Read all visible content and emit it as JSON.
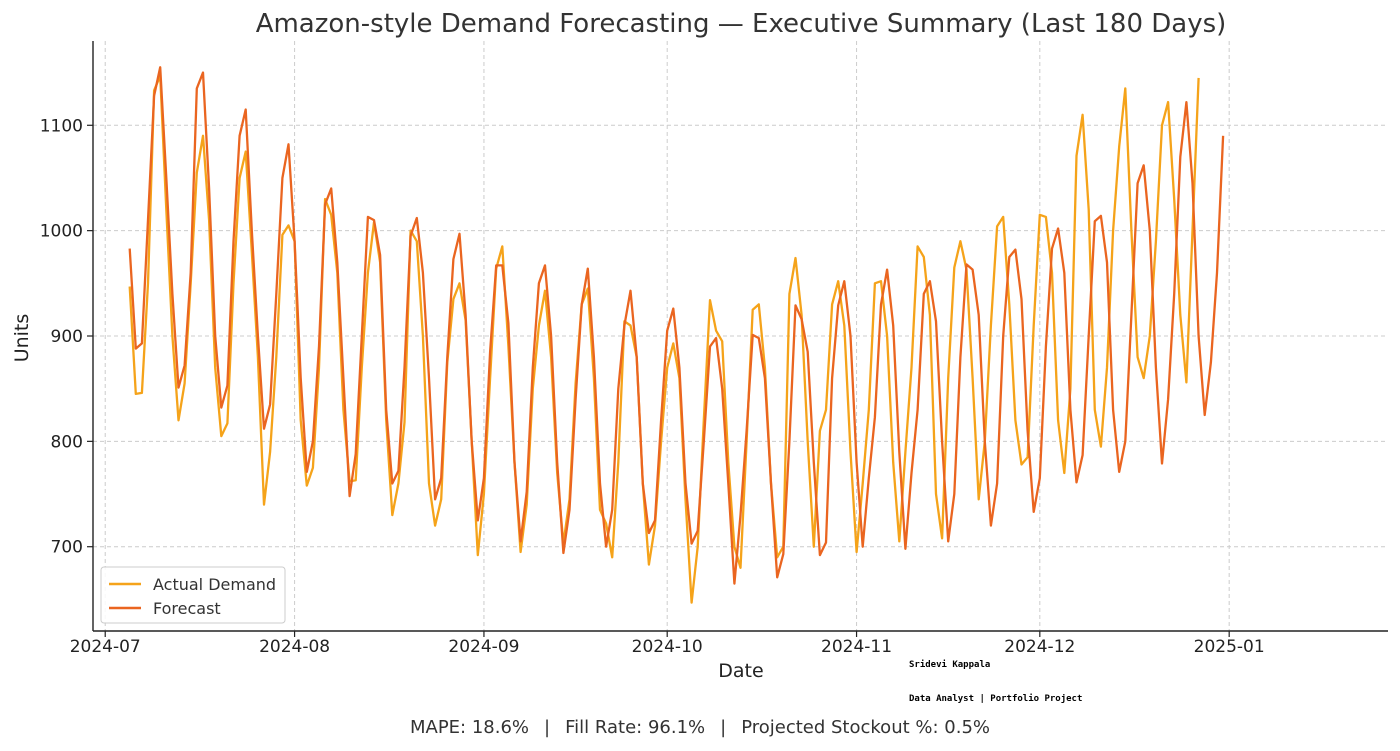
{
  "chart_data": {
    "type": "line",
    "title": "Amazon-style Demand Forecasting — Executive Summary (Last 180 Days)",
    "xlabel": "Date",
    "ylabel": "Units",
    "x_ticks": [
      "2024-07",
      "2024-08",
      "2024-09",
      "2024-10",
      "2024-11",
      "2024-12",
      "2025-01"
    ],
    "y_ticks": [
      700,
      800,
      900,
      1000,
      1100
    ],
    "xlim": [
      "2024-06-29",
      "2025-01-27"
    ],
    "ylim": [
      620,
      1180
    ],
    "grid": true,
    "legend_position": "lower-left",
    "x_start": "2024-07-05",
    "x_end": "2024-12-31",
    "series": [
      {
        "name": "Actual Demand",
        "color": "#f5a31a",
        "values": [
          947,
          845,
          846,
          950,
          1133,
          1147,
          1020,
          900,
          820,
          855,
          950,
          1055,
          1090,
          1010,
          870,
          805,
          817,
          950,
          1050,
          1075,
          980,
          880,
          740,
          790,
          880,
          996,
          1005,
          990,
          820,
          758,
          775,
          870,
          1030,
          1015,
          960,
          830,
          762,
          763,
          870,
          960,
          1008,
          970,
          820,
          730,
          760,
          818,
          1000,
          990,
          900,
          760,
          720,
          745,
          875,
          935,
          950,
          915,
          800,
          692,
          750,
          860,
          964,
          985,
          890,
          780,
          695,
          740,
          850,
          910,
          943,
          880,
          770,
          703,
          745,
          855,
          930,
          945,
          860,
          735,
          722,
          690,
          780,
          914,
          910,
          880,
          760,
          683,
          720,
          800,
          870,
          893,
          860,
          745,
          647,
          700,
          820,
          934,
          905,
          895,
          780,
          700,
          680,
          800,
          925,
          930,
          870,
          760,
          690,
          700,
          940,
          974,
          920,
          800,
          700,
          810,
          830,
          930,
          952,
          910,
          790,
          695,
          760,
          830,
          950,
          952,
          900,
          780,
          705,
          790,
          870,
          985,
          975,
          920,
          750,
          708,
          860,
          965,
          990,
          963,
          860,
          745,
          800,
          910,
          1004,
          1013,
          930,
          820,
          778,
          785,
          910,
          1015,
          1013,
          960,
          820,
          770,
          850,
          1071,
          1110,
          1020,
          830,
          795,
          870,
          1000,
          1080,
          1135,
          1000,
          880,
          860,
          900,
          990,
          1100,
          1122,
          1030,
          920,
          856,
          1000,
          1145
        ]
      },
      {
        "name": "Forecast",
        "color": "#ea6520",
        "values": [
          983,
          888,
          893,
          1010,
          1128,
          1155,
          1050,
          940,
          851,
          872,
          960,
          1135,
          1150,
          1040,
          900,
          832,
          853,
          990,
          1090,
          1115,
          1000,
          900,
          812,
          835,
          940,
          1050,
          1082,
          990,
          860,
          771,
          800,
          890,
          1025,
          1040,
          970,
          860,
          748,
          788,
          900,
          1013,
          1010,
          977,
          830,
          760,
          772,
          870,
          995,
          1012,
          960,
          860,
          745,
          765,
          880,
          973,
          997,
          920,
          800,
          725,
          765,
          885,
          967,
          967,
          912,
          780,
          705,
          752,
          870,
          950,
          967,
          900,
          780,
          694,
          735,
          840,
          930,
          964,
          880,
          760,
          700,
          735,
          850,
          910,
          943,
          880,
          760,
          713,
          725,
          820,
          905,
          926,
          870,
          760,
          703,
          715,
          800,
          890,
          898,
          850,
          760,
          665,
          730,
          810,
          901,
          898,
          860,
          760,
          671,
          693,
          800,
          929,
          916,
          885,
          780,
          692,
          704,
          860,
          929,
          952,
          900,
          780,
          700,
          765,
          823,
          930,
          963,
          910,
          790,
          698,
          770,
          830,
          940,
          952,
          914,
          800,
          705,
          750,
          880,
          968,
          963,
          920,
          800,
          720,
          760,
          900,
          975,
          982,
          935,
          810,
          733,
          765,
          890,
          983,
          1002,
          960,
          830,
          761,
          787,
          900,
          1009,
          1014,
          970,
          830,
          771,
          800,
          920,
          1045,
          1062,
          1000,
          870,
          779,
          840,
          940,
          1070,
          1122,
          1045,
          900,
          825,
          875,
          960,
          1090
        ]
      }
    ]
  },
  "legend": {
    "actual_label": "Actual Demand",
    "forecast_label": "Forecast"
  },
  "signature": {
    "name": "Sridevi Kappala",
    "role": "Data Analyst | Portfolio Project"
  },
  "footer": {
    "mape": "MAPE: 18.6%",
    "fill_rate": "Fill Rate: 96.1%",
    "stockout": "Projected Stockout %: 0.5%",
    "separator": "|"
  }
}
